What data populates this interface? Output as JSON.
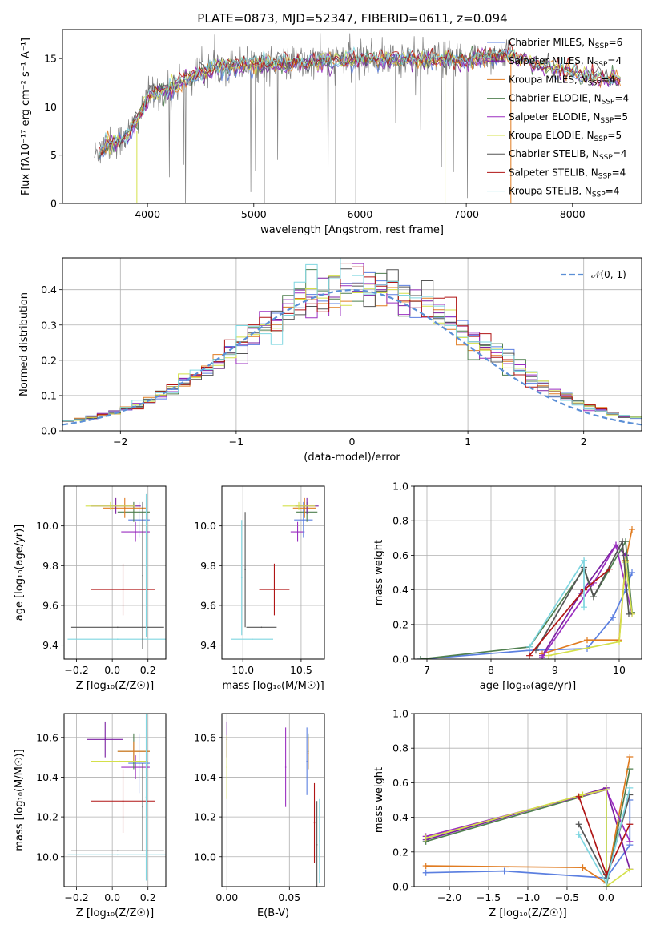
{
  "page": {
    "title": "PLATE=0873, MJD=52347, FIBERID=0611, z=0.094"
  },
  "models": [
    {
      "name": "Chabrier MILES",
      "nssp": "6",
      "color": "#5b7fe0"
    },
    {
      "name": "Salpeter MILES",
      "nssp": "4",
      "color": "#7b1fa2"
    },
    {
      "name": "Kroupa MILES",
      "nssp": "4",
      "color": "#e07b20"
    },
    {
      "name": "Chabrier ELODIE",
      "nssp": "4",
      "color": "#4f7f4f"
    },
    {
      "name": "Salpeter ELODIE",
      "nssp": "5",
      "color": "#9b2fc0"
    },
    {
      "name": "Kroupa ELODIE",
      "nssp": "5",
      "color": "#d4e04a"
    },
    {
      "name": "Chabrier STELIB",
      "nssp": "4",
      "color": "#555555"
    },
    {
      "name": "Salpeter STELIB",
      "nssp": "4",
      "color": "#b01515"
    },
    {
      "name": "Kroupa STELIB",
      "nssp": "4",
      "color": "#7fd6e0"
    }
  ],
  "chart_data": [
    {
      "id": "spectrum",
      "type": "line",
      "xlabel": "wavelength [Angstrom, rest frame]",
      "ylabel": "Flux [fλ10⁻¹⁷ erg cm⁻² s⁻¹ A⁻¹]",
      "xlim": [
        3200,
        8650
      ],
      "ylim": [
        0,
        18
      ],
      "xticks": [
        4000,
        5000,
        6000,
        7000,
        8000
      ],
      "yticks": [
        0,
        5,
        10,
        15
      ],
      "grid": false,
      "legend": "right",
      "data_range": [
        3500,
        7420
      ],
      "anchors": [
        [
          3500,
          5.0
        ],
        [
          3600,
          6.0
        ],
        [
          3700,
          6.3
        ],
        [
          3800,
          7.0
        ],
        [
          3900,
          8.5
        ],
        [
          4000,
          11.0
        ],
        [
          4100,
          11.8
        ],
        [
          4200,
          11.5
        ],
        [
          4300,
          12.5
        ],
        [
          4400,
          13.0
        ],
        [
          4500,
          13.5
        ],
        [
          4600,
          14.0
        ],
        [
          4800,
          14.3
        ],
        [
          5000,
          14.5
        ],
        [
          5200,
          14.4
        ],
        [
          5500,
          14.6
        ],
        [
          5800,
          14.8
        ],
        [
          6000,
          14.9
        ],
        [
          6200,
          15.0
        ],
        [
          6500,
          14.8
        ],
        [
          6800,
          14.9
        ],
        [
          7000,
          14.8
        ],
        [
          7200,
          15.2
        ],
        [
          7420,
          15.4
        ]
      ],
      "model_range": [
        3550,
        8450
      ],
      "model_tail": [
        [
          7420,
          15.2
        ],
        [
          7600,
          14.6
        ],
        [
          7800,
          14.0
        ],
        [
          8000,
          13.6
        ],
        [
          8200,
          13.1
        ],
        [
          8450,
          12.8
        ]
      ]
    },
    {
      "id": "residuals",
      "type": "bar",
      "xlabel": "(data-model)/error",
      "ylabel": "Normed distribution",
      "xlim": [
        -2.5,
        2.5
      ],
      "ylim": [
        0,
        0.49
      ],
      "xticks": [
        -2,
        -1,
        0,
        1,
        2
      ],
      "yticks": [
        0.0,
        0.1,
        0.2,
        0.3,
        0.4
      ],
      "grid": true,
      "legend_label": "𝒩(0, 1)",
      "legend": "top-right"
    },
    {
      "id": "age-vs-Z",
      "type": "scatter",
      "xlabel": "Z [log₁₀(Z/Z☉)]",
      "ylabel": "age  [log₁₀(age/yr)]",
      "xlim": [
        -0.27,
        0.3
      ],
      "ylim": [
        9.33,
        10.2
      ],
      "xticks": [
        -0.2,
        0.0,
        0.2
      ],
      "yticks": [
        9.4,
        9.6,
        9.8,
        10.0
      ],
      "grid": true,
      "points": [
        {
          "x": 0.06,
          "y": 9.68,
          "xerr": 0.18,
          "yerr": 0.13,
          "c": 7
        },
        {
          "x": 0.03,
          "y": 9.49,
          "xerr": 0.26,
          "yerr": 0.0,
          "c": 6
        },
        {
          "x": 0.03,
          "y": 9.43,
          "xerr": 0.28,
          "yerr": 0.0,
          "c": 8
        },
        {
          "x": 0.13,
          "y": 9.97,
          "xerr": 0.08,
          "yerr": 0.05,
          "c": 4
        },
        {
          "x": 0.15,
          "y": 10.03,
          "xerr": 0.06,
          "yerr": 0.09,
          "c": 0
        },
        {
          "x": 0.12,
          "y": 10.07,
          "xerr": 0.09,
          "yerr": 0.05,
          "c": 3
        },
        {
          "x": 0.07,
          "y": 10.09,
          "xerr": 0.12,
          "yerr": 0.05,
          "c": 2
        },
        {
          "x": 0.02,
          "y": 10.1,
          "xerr": 0.14,
          "yerr": 0.04,
          "c": 1
        },
        {
          "x": -0.01,
          "y": 10.1,
          "xerr": 0.14,
          "yerr": 0.02,
          "c": 5
        },
        {
          "x": 0.17,
          "y": 9.75,
          "xerr": 0.0,
          "yerr": 0.37,
          "c": 6
        },
        {
          "x": 0.19,
          "y": 9.8,
          "xerr": 0.0,
          "yerr": 0.36,
          "c": 8
        }
      ]
    },
    {
      "id": "age-vs-mass",
      "type": "scatter",
      "xlabel": "mass [log₁₀(M/M☉)]",
      "ylabel": "",
      "xlim": [
        9.82,
        10.7
      ],
      "ylim": [
        9.33,
        10.2
      ],
      "xticks": [
        10.0,
        10.5
      ],
      "yticks": [
        9.4,
        9.6,
        9.8,
        10.0
      ],
      "grid": true,
      "points": [
        {
          "x": 10.27,
          "y": 9.68,
          "xerr": 0.13,
          "yerr": 0.13,
          "c": 7
        },
        {
          "x": 10.16,
          "y": 9.49,
          "xerr": 0.13,
          "yerr": 0.0,
          "c": 6
        },
        {
          "x": 10.08,
          "y": 9.43,
          "xerr": 0.18,
          "yerr": 0.0,
          "c": 8
        },
        {
          "x": 10.02,
          "y": 9.78,
          "xerr": 0.0,
          "yerr": 0.29,
          "c": 6
        },
        {
          "x": 9.99,
          "y": 9.74,
          "xerr": 0.0,
          "yerr": 0.29,
          "c": 8
        },
        {
          "x": 10.47,
          "y": 9.97,
          "xerr": 0.06,
          "yerr": 0.05,
          "c": 4
        },
        {
          "x": 10.52,
          "y": 10.03,
          "xerr": 0.08,
          "yerr": 0.09,
          "c": 0
        },
        {
          "x": 10.55,
          "y": 10.07,
          "xerr": 0.09,
          "yerr": 0.05,
          "c": 3
        },
        {
          "x": 10.53,
          "y": 10.09,
          "xerr": 0.1,
          "yerr": 0.05,
          "c": 2
        },
        {
          "x": 10.55,
          "y": 10.1,
          "xerr": 0.1,
          "yerr": 0.04,
          "c": 1
        },
        {
          "x": 10.48,
          "y": 10.1,
          "xerr": 0.14,
          "yerr": 0.02,
          "c": 5
        }
      ]
    },
    {
      "id": "weight-vs-age",
      "type": "line",
      "xlabel": "age  [log₁₀(age/yr)]",
      "ylabel": "mass weight",
      "xlim": [
        6.8,
        10.35
      ],
      "ylim": [
        0,
        1.0
      ],
      "xticks": [
        7,
        8,
        9,
        10
      ],
      "yticks": [
        0.0,
        0.2,
        0.4,
        0.6,
        0.8,
        1.0
      ],
      "grid": true,
      "series": [
        {
          "c": 0,
          "pts": [
            [
              6.9,
              0.0
            ],
            [
              8.6,
              0.05
            ],
            [
              9.5,
              0.06
            ],
            [
              9.9,
              0.24
            ],
            [
              10.1,
              0.4
            ],
            [
              10.2,
              0.5
            ]
          ]
        },
        {
          "c": 1,
          "pts": [
            [
              8.8,
              0.02
            ],
            [
              9.4,
              0.38
            ],
            [
              9.95,
              0.66
            ],
            [
              10.1,
              0.6
            ]
          ]
        },
        {
          "c": 2,
          "pts": [
            [
              8.8,
              0.03
            ],
            [
              9.5,
              0.11
            ],
            [
              10.0,
              0.11
            ],
            [
              10.1,
              0.57
            ],
            [
              10.2,
              0.75
            ]
          ]
        },
        {
          "c": 3,
          "pts": [
            [
              6.9,
              0.0
            ],
            [
              8.6,
              0.07
            ],
            [
              9.45,
              0.52
            ],
            [
              9.6,
              0.36
            ],
            [
              10.1,
              0.68
            ],
            [
              10.2,
              0.27
            ]
          ]
        },
        {
          "c": 4,
          "pts": [
            [
              8.8,
              0.01
            ],
            [
              9.6,
              0.44
            ],
            [
              9.95,
              0.66
            ],
            [
              10.2,
              0.26
            ]
          ]
        },
        {
          "c": 5,
          "pts": [
            [
              8.9,
              0.02
            ],
            [
              10.0,
              0.1
            ],
            [
              10.1,
              0.56
            ],
            [
              10.2,
              0.26
            ]
          ]
        },
        {
          "c": 6,
          "pts": [
            [
              8.7,
              0.05
            ],
            [
              9.45,
              0.53
            ],
            [
              9.6,
              0.36
            ],
            [
              10.05,
              0.68
            ],
            [
              10.15,
              0.26
            ]
          ]
        },
        {
          "c": 7,
          "pts": [
            [
              8.6,
              0.02
            ],
            [
              9.45,
              0.4
            ],
            [
              9.85,
              0.52
            ]
          ]
        },
        {
          "c": 8,
          "pts": [
            [
              8.6,
              0.07
            ],
            [
              9.45,
              0.57
            ],
            [
              9.45,
              0.3
            ]
          ]
        }
      ]
    },
    {
      "id": "mass-vs-Z",
      "type": "scatter",
      "xlabel": "Z [log₁₀(Z/Z☉)]",
      "ylabel": "mass [log₁₀(M/M☉)]",
      "xlim": [
        -0.27,
        0.3
      ],
      "ylim": [
        9.85,
        10.72
      ],
      "xticks": [
        -0.2,
        0.0,
        0.2
      ],
      "yticks": [
        10.0,
        10.2,
        10.4,
        10.6
      ],
      "grid": true,
      "points": [
        {
          "x": 0.06,
          "y": 10.28,
          "xerr": 0.18,
          "yerr": 0.16,
          "c": 7
        },
        {
          "x": 0.03,
          "y": 10.03,
          "xerr": 0.26,
          "yerr": 0.0,
          "c": 6
        },
        {
          "x": 0.03,
          "y": 10.01,
          "xerr": 0.28,
          "yerr": 0.0,
          "c": 8
        },
        {
          "x": 0.13,
          "y": 10.45,
          "xerr": 0.08,
          "yerr": 0.06,
          "c": 4
        },
        {
          "x": 0.15,
          "y": 10.47,
          "xerr": 0.06,
          "yerr": 0.15,
          "c": 0
        },
        {
          "x": 0.12,
          "y": 10.53,
          "xerr": 0.09,
          "yerr": 0.09,
          "c": 3
        },
        {
          "x": 0.12,
          "y": 10.53,
          "xerr": 0.09,
          "yerr": 0.05,
          "c": 2
        },
        {
          "x": -0.04,
          "y": 10.59,
          "xerr": 0.1,
          "yerr": 0.09,
          "c": 1
        },
        {
          "x": 0.04,
          "y": 10.48,
          "xerr": 0.16,
          "yerr": 0.0,
          "c": 5
        },
        {
          "x": 0.17,
          "y": 10.25,
          "xerr": 0.0,
          "yerr": 0.22,
          "c": 6
        },
        {
          "x": 0.19,
          "y": 10.3,
          "xerr": 0.0,
          "yerr": 0.42,
          "c": 8
        }
      ]
    },
    {
      "id": "mass-vs-ebv",
      "type": "scatter",
      "xlabel": "E(B-V)",
      "ylabel": "",
      "xlim": [
        -0.004,
        0.078
      ],
      "ylim": [
        9.85,
        10.72
      ],
      "xticks": [
        0.0,
        0.05
      ],
      "yticks": [
        10.0,
        10.2,
        10.4,
        10.6
      ],
      "grid": true,
      "points": [
        {
          "x": 0.0,
          "y": 10.59,
          "xerr": 0.0,
          "yerr": 0.09,
          "c": 1
        },
        {
          "x": 0.0,
          "y": 10.45,
          "xerr": 0.0,
          "yerr": 0.16,
          "c": 5
        },
        {
          "x": 0.047,
          "y": 10.45,
          "xerr": 0.0,
          "yerr": 0.2,
          "c": 4
        },
        {
          "x": 0.064,
          "y": 10.48,
          "xerr": 0.0,
          "yerr": 0.17,
          "c": 0
        },
        {
          "x": 0.065,
          "y": 10.53,
          "xerr": 0.0,
          "yerr": 0.09,
          "c": 3
        },
        {
          "x": 0.065,
          "y": 10.52,
          "xerr": 0.0,
          "yerr": 0.08,
          "c": 2
        },
        {
          "x": 0.07,
          "y": 10.17,
          "xerr": 0.0,
          "yerr": 0.2,
          "c": 7
        },
        {
          "x": 0.072,
          "y": 10.06,
          "xerr": 0.0,
          "yerr": 0.22,
          "c": 6
        },
        {
          "x": 0.074,
          "y": 10.08,
          "xerr": 0.0,
          "yerr": 0.21,
          "c": 8
        }
      ]
    },
    {
      "id": "weight-vs-Z",
      "type": "line",
      "xlabel": "Z [log₁₀(Z/Z☉)]",
      "ylabel": "mass weight",
      "xlim": [
        -2.45,
        0.45
      ],
      "ylim": [
        0,
        1.0
      ],
      "xticks": [
        -2.0,
        -1.5,
        -1.0,
        -0.5,
        0.0
      ],
      "yticks": [
        0.0,
        0.2,
        0.4,
        0.6,
        0.8,
        1.0
      ],
      "grid": true,
      "series": [
        {
          "c": 0,
          "pts": [
            [
              -2.3,
              0.08
            ],
            [
              -1.3,
              0.09
            ],
            [
              0.0,
              0.05
            ],
            [
              0.3,
              0.24
            ],
            [
              0.3,
              0.5
            ]
          ]
        },
        {
          "c": 1,
          "pts": [
            [
              -2.3,
              0.27
            ],
            [
              0.0,
              0.57
            ],
            [
              0.3,
              0.1
            ]
          ]
        },
        {
          "c": 2,
          "pts": [
            [
              -2.3,
              0.12
            ],
            [
              -0.3,
              0.11
            ],
            [
              0.0,
              0.02
            ],
            [
              0.3,
              0.75
            ]
          ]
        },
        {
          "c": 3,
          "pts": [
            [
              -2.3,
              0.26
            ],
            [
              0.0,
              0.56
            ],
            [
              0.0,
              0.0
            ],
            [
              0.3,
              0.68
            ]
          ]
        },
        {
          "c": 4,
          "pts": [
            [
              -2.3,
              0.29
            ],
            [
              0.0,
              0.56
            ],
            [
              0.3,
              0.26
            ]
          ]
        },
        {
          "c": 5,
          "pts": [
            [
              -2.3,
              0.28
            ],
            [
              -0.3,
              0.53
            ],
            [
              0.0,
              0.56
            ],
            [
              0.0,
              0.0
            ],
            [
              0.3,
              0.1
            ]
          ]
        },
        {
          "c": 6,
          "pts": [
            [
              -0.35,
              0.36
            ],
            [
              0.0,
              0.05
            ],
            [
              0.3,
              0.53
            ]
          ]
        },
        {
          "c": 7,
          "pts": [
            [
              -0.35,
              0.52
            ],
            [
              0.0,
              0.07
            ],
            [
              0.3,
              0.36
            ]
          ]
        },
        {
          "c": 8,
          "pts": [
            [
              -0.35,
              0.3
            ],
            [
              0.0,
              0.02
            ],
            [
              0.3,
              0.57
            ]
          ]
        }
      ]
    }
  ]
}
